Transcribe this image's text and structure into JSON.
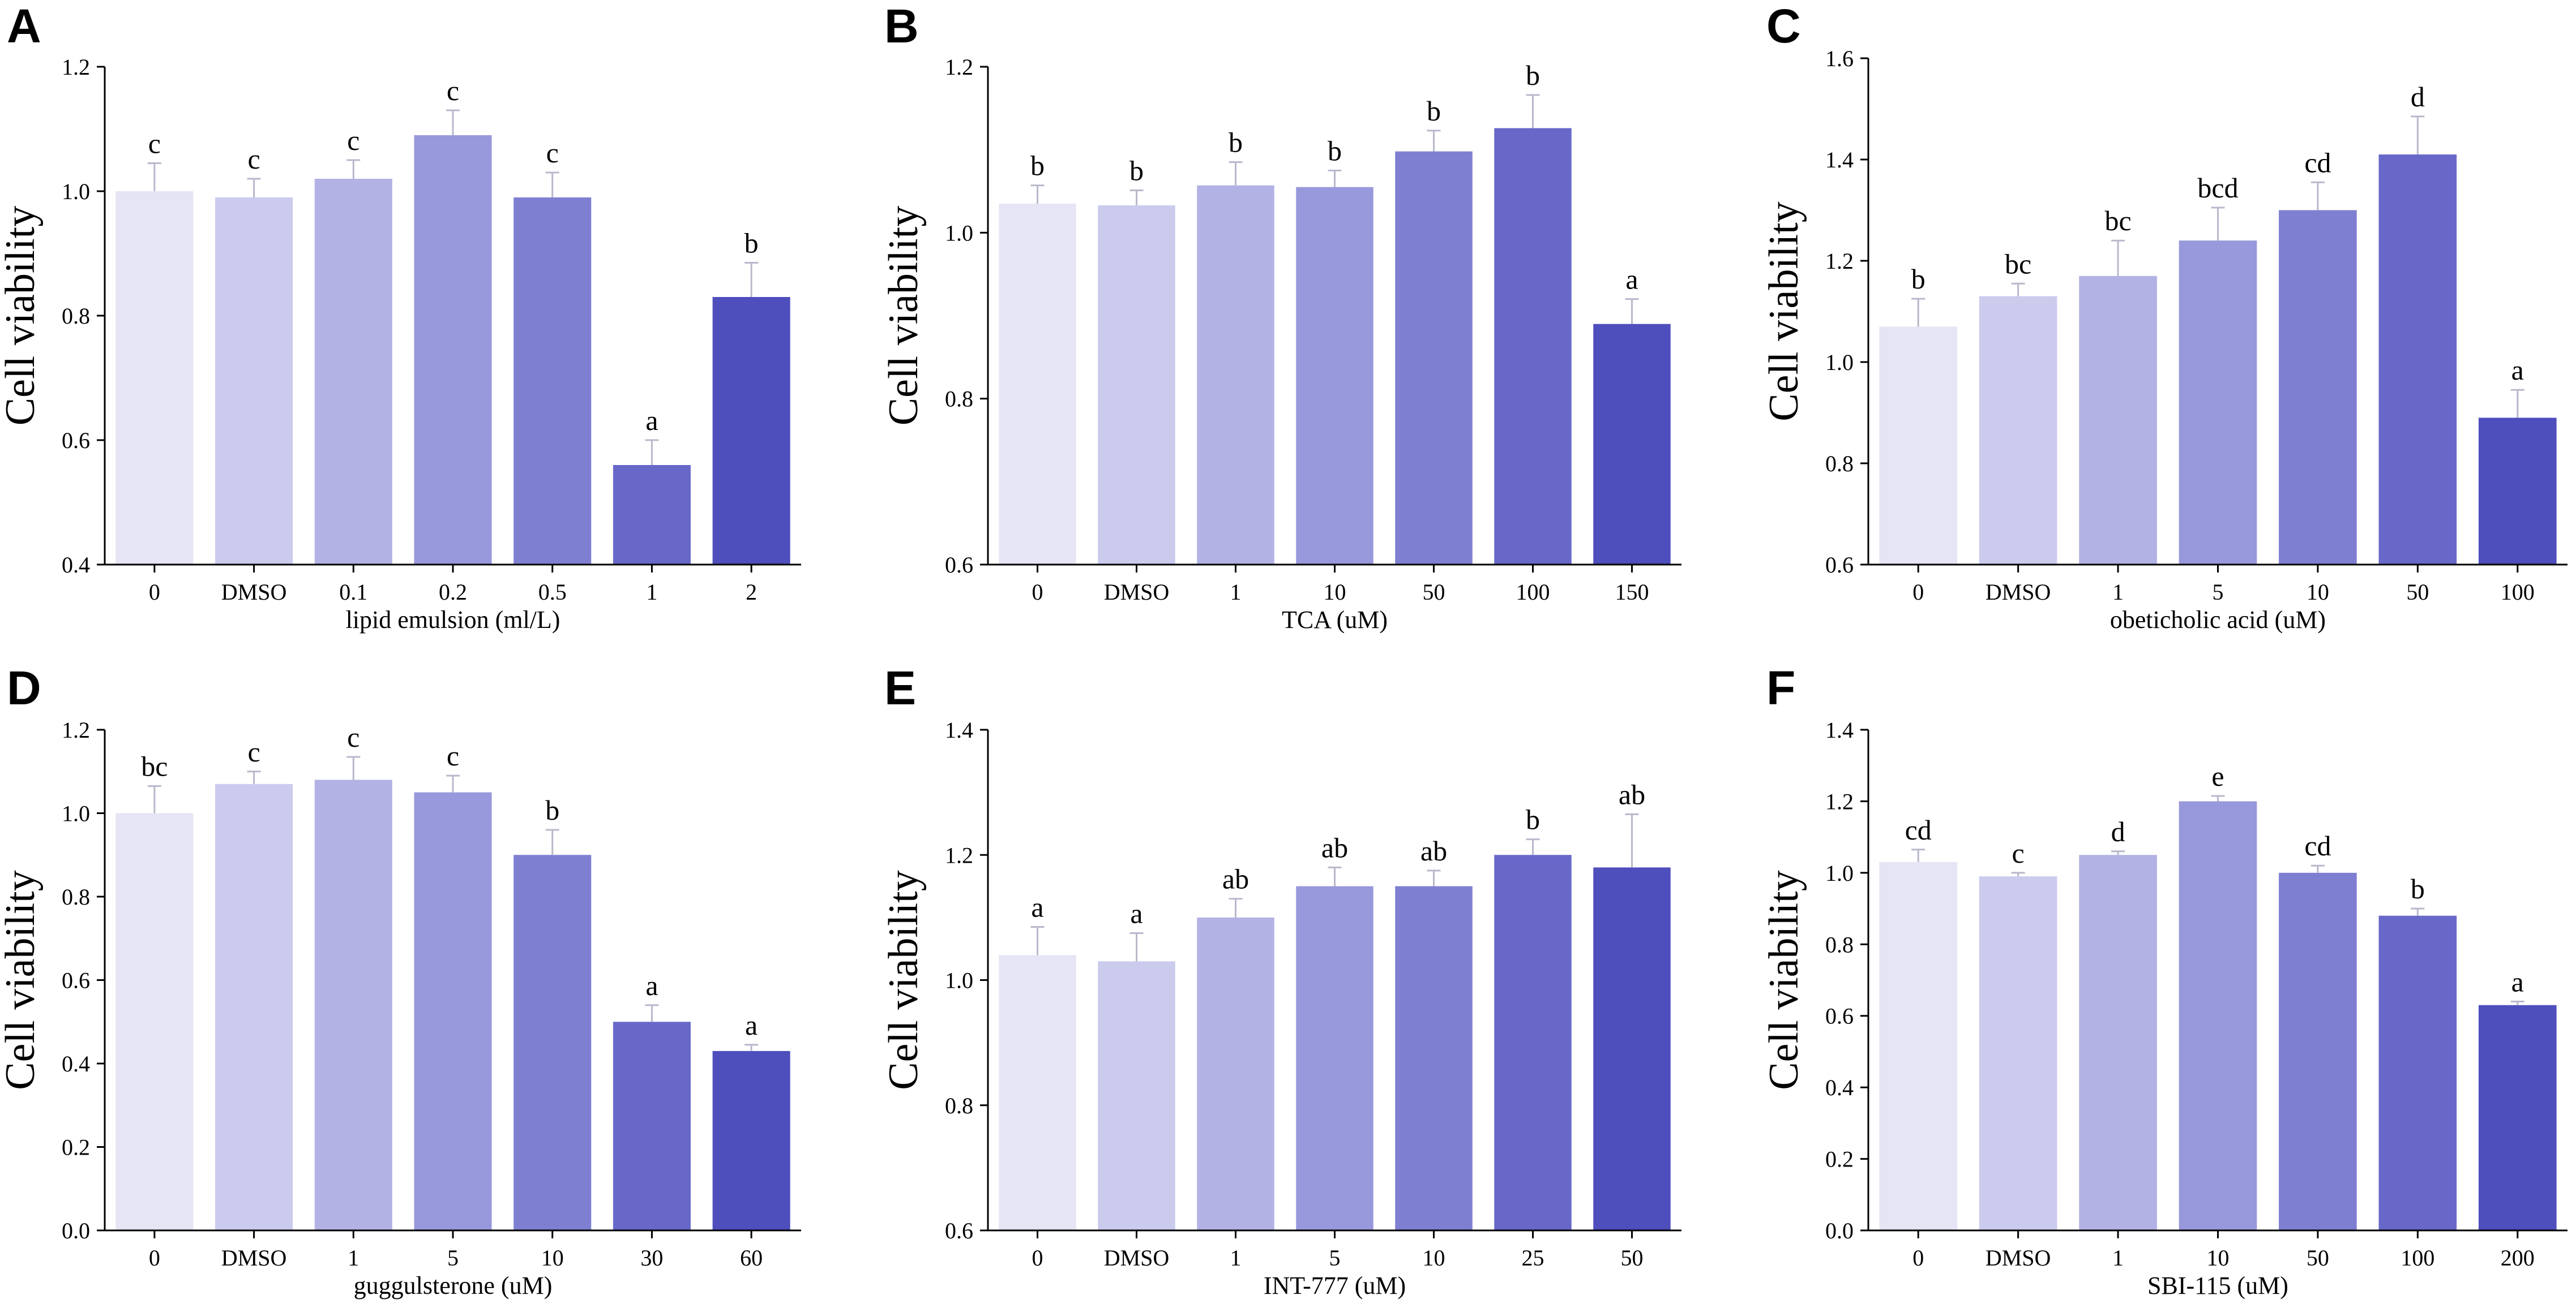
{
  "figure": {
    "bar_colors": [
      "#e5e5f5",
      "#cbcbee",
      "#b2b2e5",
      "#9898dc",
      "#7f7fd2",
      "#6868c9",
      "#4e4ebd"
    ]
  },
  "chart_data": [
    {
      "panel": "A",
      "type": "bar",
      "categories": [
        "0",
        "DMSO",
        "0.1",
        "0.2",
        "0.5",
        "1",
        "2"
      ],
      "values": [
        1.0,
        0.99,
        1.02,
        1.09,
        0.99,
        0.56,
        0.83
      ],
      "errors": [
        0.045,
        0.03,
        0.03,
        0.04,
        0.04,
        0.04,
        0.055
      ],
      "sig": [
        "c",
        "c",
        "c",
        "c",
        "c",
        "a",
        "b"
      ],
      "xlabel": "lipid emulsion (ml/L)",
      "ylabel": "Cell viability",
      "ylim": [
        0.4,
        1.2
      ],
      "yticks": [
        "0.4",
        "0.6",
        "0.8",
        "1.0",
        "1.2"
      ]
    },
    {
      "panel": "B",
      "type": "bar",
      "categories": [
        "0",
        "DMSO",
        "1",
        "10",
        "50",
        "100",
        "150"
      ],
      "values": [
        1.035,
        1.033,
        1.057,
        1.055,
        1.098,
        1.126,
        0.89
      ],
      "errors": [
        0.022,
        0.018,
        0.028,
        0.02,
        0.025,
        0.04,
        0.03
      ],
      "sig": [
        "b",
        "b",
        "b",
        "b",
        "b",
        "b",
        "a"
      ],
      "xlabel": "TCA (uM)",
      "ylabel": "Cell viability",
      "ylim": [
        0.6,
        1.2
      ],
      "yticks": [
        "0.6",
        "0.8",
        "1.0",
        "1.2"
      ]
    },
    {
      "panel": "C",
      "type": "bar",
      "categories": [
        "0",
        "DMSO",
        "1",
        "5",
        "10",
        "50",
        "100"
      ],
      "values": [
        1.07,
        1.13,
        1.17,
        1.24,
        1.3,
        1.41,
        0.89
      ],
      "errors": [
        0.055,
        0.025,
        0.07,
        0.065,
        0.055,
        0.075,
        0.055
      ],
      "sig": [
        "b",
        "bc",
        "bc",
        "bcd",
        "cd",
        "d",
        "a"
      ],
      "xlabel": "obeticholic acid (uM)",
      "ylabel": "Cell viability",
      "ylim": [
        0.6,
        1.6
      ],
      "yticks": [
        "0.6",
        "0.8",
        "1.0",
        "1.2",
        "1.4",
        "1.6"
      ]
    },
    {
      "panel": "D",
      "type": "bar",
      "categories": [
        "0",
        "DMSO",
        "1",
        "5",
        "10",
        "30",
        "60"
      ],
      "values": [
        1.0,
        1.07,
        1.08,
        1.05,
        0.9,
        0.5,
        0.43
      ],
      "errors": [
        0.065,
        0.03,
        0.055,
        0.04,
        0.06,
        0.04,
        0.015
      ],
      "sig": [
        "bc",
        "c",
        "c",
        "c",
        "b",
        "a",
        "a"
      ],
      "xlabel": "guggulsterone (uM)",
      "ylabel": "Cell viability",
      "ylim": [
        0.0,
        1.2
      ],
      "yticks": [
        "0.0",
        "0.2",
        "0.4",
        "0.6",
        "0.8",
        "1.0",
        "1.2"
      ]
    },
    {
      "panel": "E",
      "type": "bar",
      "categories": [
        "0",
        "DMSO",
        "1",
        "5",
        "10",
        "25",
        "50"
      ],
      "values": [
        1.04,
        1.03,
        1.1,
        1.15,
        1.15,
        1.2,
        1.18
      ],
      "errors": [
        0.045,
        0.045,
        0.03,
        0.03,
        0.025,
        0.025,
        0.085
      ],
      "sig": [
        "a",
        "a",
        "ab",
        "ab",
        "ab",
        "b",
        "ab"
      ],
      "xlabel": "INT-777 (uM)",
      "ylabel": "Cell viability",
      "ylim": [
        0.6,
        1.4
      ],
      "yticks": [
        "0.6",
        "0.8",
        "1.0",
        "1.2",
        "1.4"
      ]
    },
    {
      "panel": "F",
      "type": "bar",
      "categories": [
        "0",
        "DMSO",
        "1",
        "10",
        "50",
        "100",
        "200"
      ],
      "values": [
        1.03,
        0.99,
        1.05,
        1.2,
        1.0,
        0.88,
        0.63
      ],
      "errors": [
        0.035,
        0.01,
        0.01,
        0.015,
        0.02,
        0.02,
        0.01
      ],
      "sig": [
        "cd",
        "c",
        "d",
        "e",
        "cd",
        "b",
        "a"
      ],
      "xlabel": "SBI-115 (uM)",
      "ylabel": "Cell viability",
      "ylim": [
        0.0,
        1.4
      ],
      "yticks": [
        "0.0",
        "0.2",
        "0.4",
        "0.6",
        "0.8",
        "1.0",
        "1.2",
        "1.4"
      ]
    }
  ]
}
